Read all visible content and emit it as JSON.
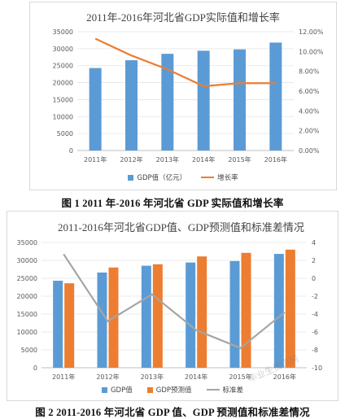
{
  "figure1": {
    "title": "2011年-2016年河北省GDP实际值和增长率",
    "caption": "图 1 2011 年-2016 年河北省 GDP 实际值和增长率",
    "legend": {
      "bar": "GDP值（亿元）",
      "line": "增长率"
    },
    "colors": {
      "bar": "#5b9bd5",
      "line": "#ed7d31"
    }
  },
  "figure2": {
    "title": "2011-2016年河北省GDP值、GDP预测值和标准差情况",
    "caption": "图 2 2011-2016 年河北省 GDP 值、GDP 预测值和标准差情况",
    "legend": {
      "bar1": "GDP值",
      "bar2": "GDP预测值",
      "line": "标准差"
    },
    "colors": {
      "bar1": "#5b9bd5",
      "bar2": "#ed7d31",
      "line": "#a5a5a5"
    }
  },
  "watermark": "毕业生资讯网",
  "chart_data": [
    {
      "type": "bar",
      "title": "2011年-2016年河北省GDP实际值和增长率",
      "categories": [
        "2011年",
        "2012年",
        "2013年",
        "2014年",
        "2015年",
        "2016年"
      ],
      "series": [
        {
          "name": "GDP值（亿元）",
          "type": "bar",
          "axis": "left",
          "values": [
            24300,
            26600,
            28500,
            29400,
            29800,
            31800
          ]
        },
        {
          "name": "增长率",
          "type": "line",
          "axis": "right",
          "values": [
            0.113,
            0.096,
            0.082,
            0.065,
            0.068,
            0.068
          ]
        }
      ],
      "ylim": [
        0,
        35000
      ],
      "yticks": [
        "0",
        "5000",
        "10000",
        "15000",
        "20000",
        "25000",
        "30000",
        "35000"
      ],
      "y2lim": [
        0,
        0.12
      ],
      "y2ticks": [
        "0.00%",
        "2.00%",
        "4.00%",
        "6.00%",
        "8.00%",
        "10.00%",
        "12.00%"
      ],
      "legend_position": "bottom"
    },
    {
      "type": "bar",
      "title": "2011-2016年河北省GDP值、GDP预测值和标准差情况",
      "categories": [
        "2011年",
        "2012年",
        "2013年",
        "2014年",
        "2015年",
        "2016年"
      ],
      "series": [
        {
          "name": "GDP值",
          "type": "bar",
          "axis": "left",
          "values": [
            24300,
            26600,
            28500,
            29400,
            29800,
            31800
          ]
        },
        {
          "name": "GDP预测值",
          "type": "bar",
          "axis": "left",
          "values": [
            23600,
            28000,
            28900,
            31100,
            32100,
            33000
          ]
        },
        {
          "name": "标准差",
          "type": "line",
          "axis": "right",
          "values": [
            2.7,
            -4.8,
            -1.8,
            -5.8,
            -7.8,
            -3.8
          ]
        }
      ],
      "ylim": [
        0,
        35000
      ],
      "yticks": [
        "0",
        "5000",
        "10000",
        "15000",
        "20000",
        "25000",
        "30000",
        "35000"
      ],
      "y2lim": [
        -10,
        4
      ],
      "y2ticks": [
        "-10",
        "-8",
        "-6",
        "-4",
        "-2",
        "0",
        "2",
        "4"
      ],
      "legend_position": "bottom"
    }
  ]
}
